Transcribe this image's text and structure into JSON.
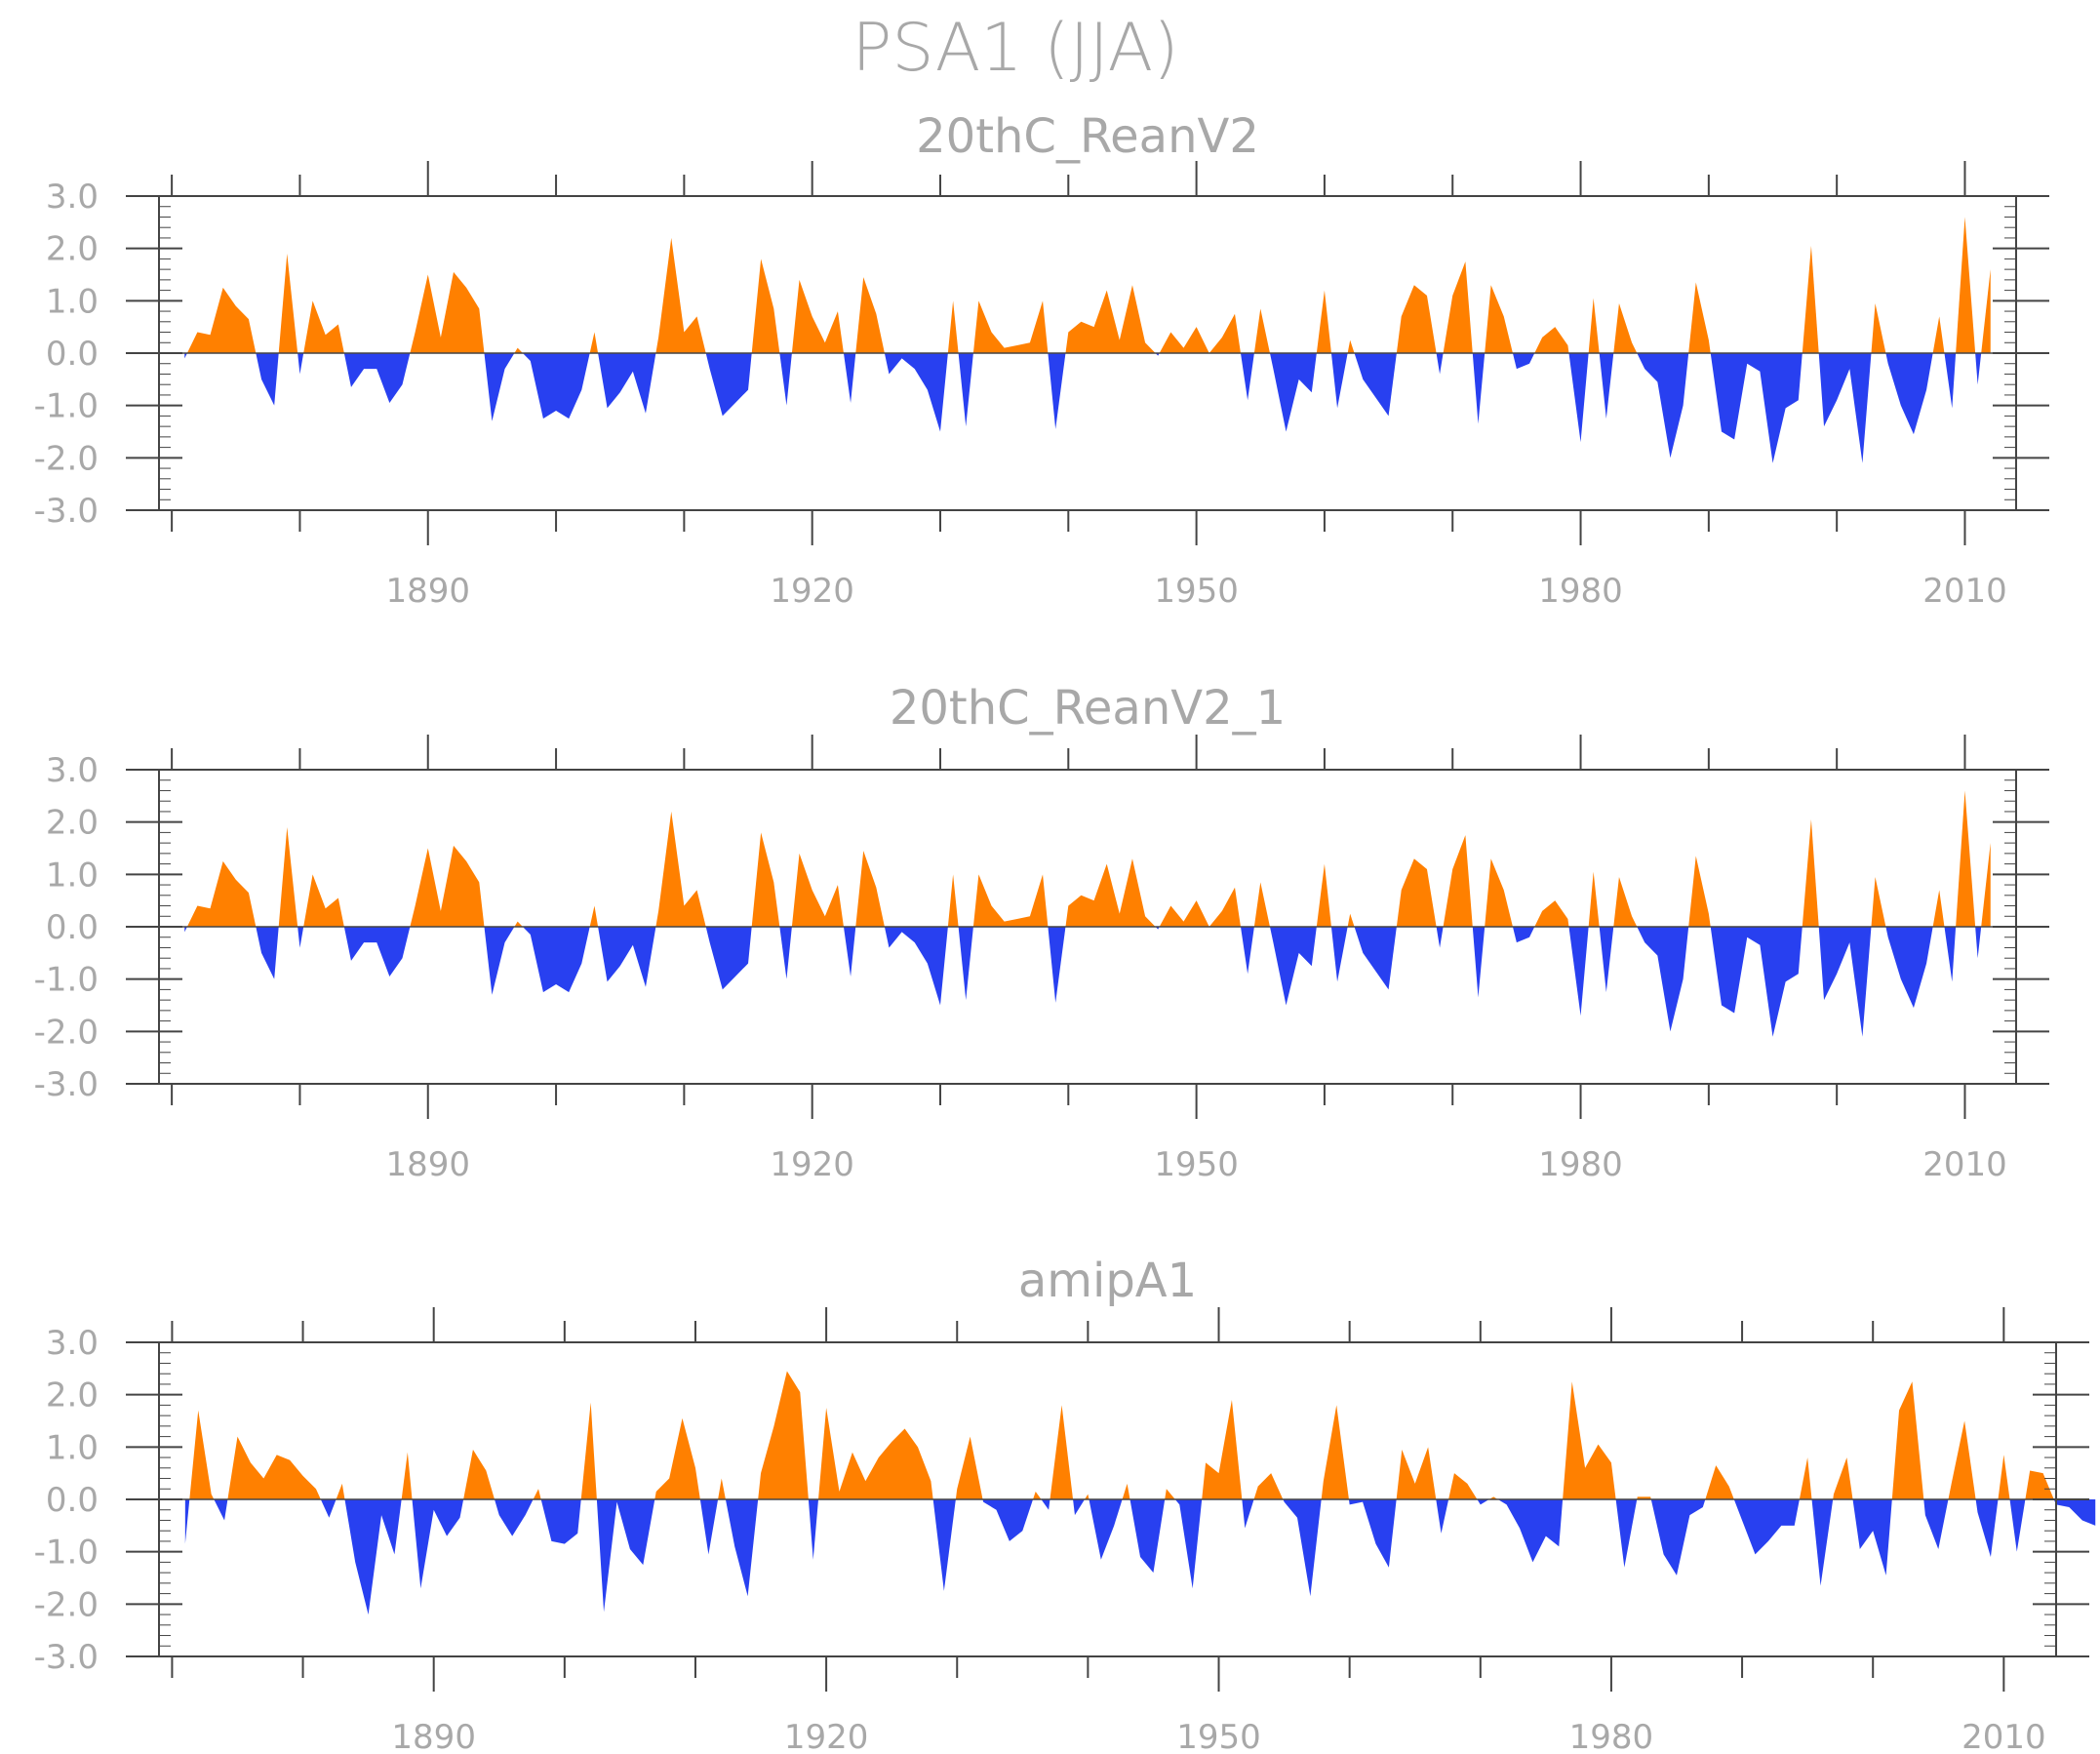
{
  "title": "PSA1  (JJA)",
  "colors": {
    "positive": "#ff8000",
    "negative": "#2840f0",
    "axis": "#444444",
    "text": "#a8a8a8"
  },
  "chart_data": [
    {
      "type": "area",
      "title": "20thC_ReanV2",
      "x_start": 1871,
      "xlim": [
        1869,
        2014
      ],
      "ylim": [
        -3,
        3
      ],
      "xticks_major": [
        1890,
        1920,
        1950,
        1980,
        2010
      ],
      "yticks": [
        "3.0",
        "2.0",
        "1.0",
        "0.0",
        "-1.0",
        "-2.0",
        "-3.0"
      ],
      "fill_above_zero": "orange",
      "fill_below_zero": "blue",
      "values": [
        -0.1,
        0.4,
        0.35,
        1.25,
        0.9,
        0.65,
        -0.5,
        -1.0,
        1.9,
        -0.4,
        1.0,
        0.35,
        0.55,
        -0.65,
        -0.3,
        -0.3,
        -0.95,
        -0.6,
        0.4,
        1.5,
        0.3,
        1.55,
        1.25,
        0.85,
        -1.3,
        -0.3,
        0.1,
        -0.15,
        -1.25,
        -1.1,
        -1.25,
        -0.7,
        0.4,
        -1.05,
        -0.75,
        -0.35,
        -1.15,
        0.3,
        2.2,
        0.4,
        0.7,
        -0.3,
        -1.2,
        -0.95,
        -0.7,
        1.8,
        0.85,
        -1.0,
        1.4,
        0.7,
        0.2,
        0.8,
        -0.95,
        1.45,
        0.75,
        -0.4,
        -0.1,
        -0.3,
        -0.7,
        -1.5,
        1.0,
        -1.4,
        1.0,
        0.4,
        0.1,
        0.15,
        0.2,
        1.0,
        -1.45,
        0.4,
        0.6,
        0.5,
        1.2,
        0.25,
        1.3,
        0.2,
        -0.05,
        0.4,
        0.1,
        0.5,
        0.0,
        0.3,
        0.75,
        -0.9,
        0.85,
        -0.3,
        -1.5,
        -0.5,
        -0.75,
        1.2,
        -1.05,
        0.25,
        -0.5,
        -0.85,
        -1.2,
        0.7,
        1.3,
        1.1,
        -0.4,
        1.1,
        1.75,
        -1.35,
        1.3,
        0.7,
        -0.3,
        -0.2,
        0.3,
        0.5,
        0.15,
        -1.7,
        1.05,
        -1.25,
        0.95,
        0.2,
        -0.3,
        -0.55,
        -2.0,
        -1.0,
        1.35,
        0.25,
        -1.5,
        -1.65,
        -0.2,
        -0.35,
        -2.1,
        -1.05,
        -0.9,
        2.05,
        -1.4,
        -0.9,
        -0.3,
        -2.1,
        0.95,
        -0.2,
        -1.0,
        -1.55,
        -0.7,
        0.7,
        -1.05,
        2.6,
        -0.6,
        1.6
      ]
    },
    {
      "type": "area",
      "title": "20thC_ReanV2_1",
      "x_start": 1871,
      "xlim": [
        1869,
        2014
      ],
      "ylim": [
        -3,
        3
      ],
      "xticks_major": [
        1890,
        1920,
        1950,
        1980,
        2010
      ],
      "yticks": [
        "3.0",
        "2.0",
        "1.0",
        "0.0",
        "-1.0",
        "-2.0",
        "-3.0"
      ],
      "fill_above_zero": "orange",
      "fill_below_zero": "blue",
      "values": [
        -0.1,
        0.4,
        0.35,
        1.25,
        0.9,
        0.65,
        -0.5,
        -1.0,
        1.9,
        -0.4,
        1.0,
        0.35,
        0.55,
        -0.65,
        -0.3,
        -0.3,
        -0.95,
        -0.6,
        0.4,
        1.5,
        0.3,
        1.55,
        1.25,
        0.85,
        -1.3,
        -0.3,
        0.1,
        -0.15,
        -1.25,
        -1.1,
        -1.25,
        -0.7,
        0.4,
        -1.05,
        -0.75,
        -0.35,
        -1.15,
        0.3,
        2.2,
        0.4,
        0.7,
        -0.3,
        -1.2,
        -0.95,
        -0.7,
        1.8,
        0.85,
        -1.0,
        1.4,
        0.7,
        0.2,
        0.8,
        -0.95,
        1.45,
        0.75,
        -0.4,
        -0.1,
        -0.3,
        -0.7,
        -1.5,
        1.0,
        -1.4,
        1.0,
        0.4,
        0.1,
        0.15,
        0.2,
        1.0,
        -1.45,
        0.4,
        0.6,
        0.5,
        1.2,
        0.25,
        1.3,
        0.2,
        -0.05,
        0.4,
        0.1,
        0.5,
        0.0,
        0.3,
        0.75,
        -0.9,
        0.85,
        -0.3,
        -1.5,
        -0.5,
        -0.75,
        1.2,
        -1.05,
        0.25,
        -0.5,
        -0.85,
        -1.2,
        0.7,
        1.3,
        1.1,
        -0.4,
        1.1,
        1.75,
        -1.35,
        1.3,
        0.7,
        -0.3,
        -0.2,
        0.3,
        0.5,
        0.15,
        -1.7,
        1.05,
        -1.25,
        0.95,
        0.2,
        -0.3,
        -0.55,
        -2.0,
        -1.0,
        1.35,
        0.25,
        -1.5,
        -1.65,
        -0.2,
        -0.35,
        -2.1,
        -1.05,
        -0.9,
        2.05,
        -1.4,
        -0.9,
        -0.3,
        -2.1,
        0.95,
        -0.2,
        -1.0,
        -1.55,
        -0.7,
        0.7,
        -1.05,
        2.6,
        -0.6,
        1.6
      ]
    },
    {
      "type": "area",
      "title": "amipA1",
      "x_start": 1871,
      "xlim": [
        1869,
        2014
      ],
      "ylim": [
        -3,
        3
      ],
      "xticks_major": [
        1890,
        1920,
        1950,
        1980,
        2010
      ],
      "yticks": [
        "3.0",
        "2.0",
        "1.0",
        "0.0",
        "-1.0",
        "-2.0",
        "-3.0"
      ],
      "fill_above_zero": "orange",
      "fill_below_zero": "blue",
      "values": [
        -0.85,
        1.7,
        0.1,
        -0.4,
        1.2,
        0.7,
        0.4,
        0.85,
        0.75,
        0.45,
        0.2,
        -0.35,
        0.3,
        -1.2,
        -2.2,
        -0.3,
        -1.05,
        0.9,
        -1.7,
        -0.2,
        -0.7,
        -0.35,
        0.95,
        0.55,
        -0.3,
        -0.7,
        -0.3,
        0.2,
        -0.8,
        -0.85,
        -0.65,
        1.85,
        -2.15,
        -0.05,
        -0.95,
        -1.25,
        0.15,
        0.4,
        1.55,
        0.6,
        -1.05,
        0.4,
        -0.9,
        -1.85,
        0.5,
        1.4,
        2.45,
        2.05,
        -1.15,
        1.75,
        0.15,
        0.9,
        0.35,
        0.8,
        1.1,
        1.35,
        1.0,
        0.35,
        -1.75,
        0.2,
        1.2,
        -0.05,
        -0.2,
        -0.8,
        -0.6,
        0.15,
        -0.2,
        1.8,
        -0.3,
        0.1,
        -1.15,
        -0.5,
        0.3,
        -1.1,
        -1.4,
        0.2,
        -0.1,
        -1.7,
        0.7,
        0.5,
        1.9,
        -0.55,
        0.25,
        0.5,
        -0.05,
        -0.35,
        -1.85,
        0.35,
        1.8,
        -0.1,
        -0.05,
        -0.85,
        -1.3,
        0.95,
        0.3,
        1.0,
        -0.65,
        0.5,
        0.3,
        -0.1,
        0.05,
        -0.1,
        -0.55,
        -1.2,
        -0.7,
        -0.9,
        2.25,
        0.6,
        1.05,
        0.7,
        -1.3,
        0.05,
        0.05,
        -1.05,
        -1.45,
        -0.3,
        -0.15,
        0.65,
        0.25,
        -0.4,
        -1.05,
        -0.8,
        -0.5,
        -0.5,
        0.8,
        -1.65,
        0.1,
        0.8,
        -0.95,
        -0.6,
        -1.45,
        1.7,
        2.25,
        -0.3,
        -0.95,
        0.3,
        1.5,
        -0.25,
        -1.1,
        0.85,
        -1.0,
        0.55,
        0.5,
        -0.1,
        -0.15,
        -0.4,
        -0.5
      ]
    }
  ]
}
